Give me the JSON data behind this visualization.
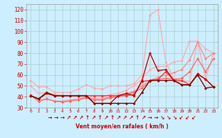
{
  "xlabel": "Vent moyen/en rafales ( km/h )",
  "x": [
    0,
    1,
    2,
    3,
    4,
    5,
    6,
    7,
    8,
    9,
    10,
    11,
    12,
    13,
    14,
    15,
    16,
    17,
    18,
    19,
    20,
    21,
    22,
    23
  ],
  "series": [
    {
      "color": "#ffaaaa",
      "linewidth": 0.9,
      "marker": "D",
      "markersize": 1.8,
      "values": [
        55,
        49,
        49,
        44,
        44,
        44,
        47,
        51,
        48,
        47,
        50,
        50,
        50,
        52,
        60,
        115,
        120,
        72,
        56,
        55,
        54,
        91,
        57,
        80
      ]
    },
    {
      "color": "#ffaaaa",
      "linewidth": 0.9,
      "marker": "D",
      "markersize": 1.8,
      "values": [
        50,
        43,
        44,
        42,
        41,
        41,
        41,
        41,
        40,
        40,
        42,
        43,
        46,
        50,
        56,
        65,
        68,
        68,
        72,
        73,
        91,
        91,
        84,
        80
      ]
    },
    {
      "color": "#ff8888",
      "linewidth": 0.9,
      "marker": "D",
      "markersize": 1.8,
      "values": [
        42,
        36,
        38,
        36,
        36,
        37,
        38,
        40,
        38,
        38,
        40,
        41,
        43,
        45,
        50,
        55,
        58,
        60,
        62,
        65,
        74,
        90,
        75,
        80
      ]
    },
    {
      "color": "#ff6666",
      "linewidth": 0.9,
      "marker": "D",
      "markersize": 1.8,
      "values": [
        41,
        36,
        38,
        36,
        35,
        36,
        37,
        39,
        37,
        37,
        39,
        40,
        42,
        44,
        48,
        54,
        56,
        57,
        56,
        57,
        63,
        75,
        63,
        75
      ]
    },
    {
      "color": "#ff3333",
      "linewidth": 1.0,
      "marker": "D",
      "markersize": 1.8,
      "values": [
        41,
        38,
        44,
        41,
        41,
        41,
        41,
        41,
        41,
        41,
        41,
        41,
        41,
        42,
        54,
        55,
        56,
        63,
        55,
        55,
        51,
        61,
        56,
        49
      ]
    },
    {
      "color": "#cc0000",
      "linewidth": 1.0,
      "marker": "D",
      "markersize": 1.8,
      "values": [
        41,
        38,
        44,
        41,
        41,
        41,
        41,
        41,
        34,
        34,
        34,
        41,
        43,
        41,
        55,
        80,
        64,
        65,
        55,
        51,
        51,
        61,
        56,
        49
      ]
    },
    {
      "color": "#880000",
      "linewidth": 1.0,
      "marker": "D",
      "markersize": 1.8,
      "values": [
        41,
        38,
        43,
        41,
        41,
        41,
        41,
        41,
        34,
        34,
        34,
        34,
        34,
        34,
        44,
        55,
        55,
        55,
        55,
        51,
        51,
        60,
        48,
        49
      ]
    }
  ],
  "ylim": [
    30,
    125
  ],
  "yticks": [
    30,
    40,
    50,
    60,
    70,
    80,
    90,
    100,
    110,
    120
  ],
  "xlim": [
    -0.5,
    23.5
  ],
  "background_color": "#cceeff",
  "grid_color": "#aacccc",
  "tick_color": "#cc0000",
  "label_color": "#cc0000",
  "wind_arrows": [
    "→",
    "→",
    "→",
    "↗",
    "↗",
    "↗",
    "↑",
    "↗",
    "↑",
    "↗",
    "↑",
    "↗",
    "↗",
    "↗",
    "↑",
    "↗",
    "→",
    "→",
    "↘",
    "↘",
    "↘",
    "↙",
    "↙",
    "↙"
  ]
}
